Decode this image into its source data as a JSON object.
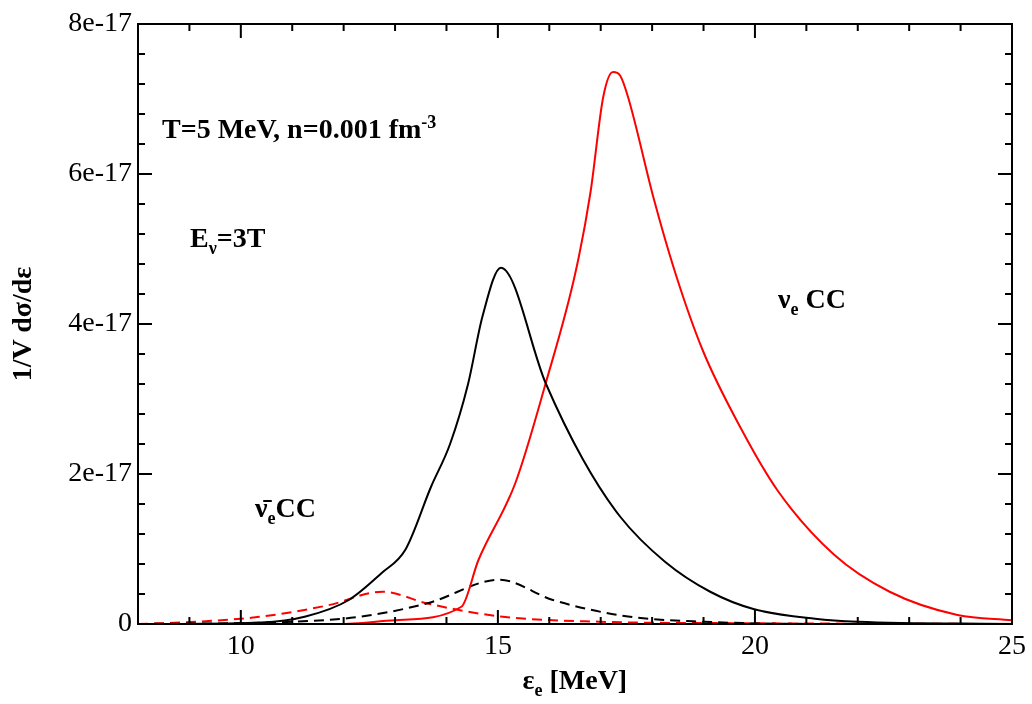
{
  "chart_data": {
    "type": "line",
    "xlabel": "ε$_{e}$ [MeV]",
    "ylabel": "1/V dσ/dε",
    "xlim": [
      8,
      25
    ],
    "ylim": [
      0,
      8e-17
    ],
    "xticks": [
      {
        "value": 8,
        "label": null
      },
      {
        "value": 9,
        "label": null
      },
      10,
      {
        "value": 11,
        "label": null
      },
      {
        "value": 12,
        "label": null
      },
      {
        "value": 13,
        "label": null
      },
      {
        "value": 14,
        "label": null
      },
      15,
      {
        "value": 16,
        "label": null
      },
      {
        "value": 17,
        "label": null
      },
      {
        "value": 18,
        "label": null
      },
      {
        "value": 19,
        "label": null
      },
      20,
      {
        "value": 21,
        "label": null
      },
      {
        "value": 22,
        "label": null
      },
      {
        "value": 23,
        "label": null
      },
      {
        "value": 24,
        "label": null
      },
      25
    ],
    "yticks": [
      {
        "value": 0,
        "label": "0"
      },
      {
        "value": 4e-18,
        "label": null
      },
      {
        "value": 8e-18,
        "label": null
      },
      {
        "value": 1.2e-17,
        "label": null
      },
      {
        "value": 1.6e-17,
        "label": null
      },
      {
        "value": 2e-17,
        "label": "2e-17"
      },
      {
        "value": 2.4e-17,
        "label": null
      },
      {
        "value": 2.8e-17,
        "label": null
      },
      {
        "value": 3.2e-17,
        "label": null
      },
      {
        "value": 3.6e-17,
        "label": null
      },
      {
        "value": 4e-17,
        "label": "4e-17"
      },
      {
        "value": 4.4e-17,
        "label": null
      },
      {
        "value": 4.8e-17,
        "label": null
      },
      {
        "value": 5.2e-17,
        "label": null
      },
      {
        "value": 5.6e-17,
        "label": null
      },
      {
        "value": 6e-17,
        "label": "6e-17"
      },
      {
        "value": 6.4e-17,
        "label": null
      },
      {
        "value": 6.8e-17,
        "label": null
      },
      {
        "value": 7.2e-17,
        "label": null
      },
      {
        "value": 7.6e-17,
        "label": null
      },
      {
        "value": 8e-17,
        "label": "8e-17"
      }
    ],
    "grid": false,
    "legend": false,
    "marker": "none",
    "annotations": [
      "T=5 MeV, n=0.001 fm$^{-3}$",
      "E$_{ν}$=3T",
      "ν$_{e}$ CC",
      "ν̄$_{e}$CC"
    ],
    "series": [
      {
        "color": "#000000",
        "line_style": "solid",
        "x": [
          8,
          10.4,
          11.26,
          12.1,
          12.74,
          13.2,
          13.7,
          14.07,
          14.42,
          14.7,
          15.06,
          15.93,
          16.65,
          17.38,
          18.25,
          19.13,
          19.97,
          21.17,
          22,
          25
        ],
        "values": [
          0,
          2e-19,
          1e-18,
          3.2e-18,
          6.8e-18,
          9.9e-18,
          1.83e-17,
          2.4e-17,
          3.2e-17,
          4.1e-17,
          4.75e-17,
          3.21e-17,
          2.2e-17,
          1.43e-17,
          8.3e-18,
          4.3e-18,
          2e-18,
          7e-19,
          3e-19,
          0
        ]
      },
      {
        "color": "#ff0000",
        "line_style": "solid",
        "x": [
          8,
          11.9,
          13.0,
          14.29,
          14.62,
          15.34,
          15.93,
          16.51,
          16.8,
          17.05,
          17.24,
          17.38,
          17.53,
          18.04,
          18.47,
          18.99,
          19.71,
          20.44,
          21.53,
          22.62,
          23.94,
          25
        ],
        "values": [
          0,
          0,
          5e-19,
          2.3e-18,
          8.5e-18,
          1.88e-17,
          3.21e-17,
          4.69e-17,
          5.75e-17,
          7.03e-17,
          7.36e-17,
          7.31e-17,
          7.03e-17,
          5.65e-17,
          4.64e-17,
          3.64e-17,
          2.63e-17,
          1.78e-17,
          9.3e-18,
          4.3e-18,
          1.2e-18,
          5e-19
        ]
      },
      {
        "color": "#000000",
        "line_style": "dashed",
        "x": [
          8,
          11.0,
          12.35,
          13.65,
          15.03,
          16.07,
          17.53,
          19.0,
          22,
          25
        ],
        "values": [
          0,
          3e-19,
          1e-18,
          2.8e-18,
          5.9e-18,
          3.2e-18,
          1e-18,
          3e-19,
          0,
          0
        ]
      },
      {
        "color": "#ff0000",
        "line_style": "dashed",
        "x": [
          8,
          9.14,
          10.42,
          11.7,
          12.75,
          13.65,
          15.05,
          17,
          20,
          25
        ],
        "values": [
          0,
          3e-19,
          1e-18,
          2.5e-18,
          4.3e-18,
          2.7e-18,
          1e-18,
          3e-19,
          1e-19,
          0
        ]
      }
    ]
  }
}
